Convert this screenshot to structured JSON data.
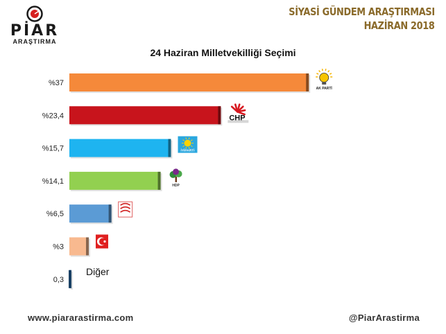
{
  "brand": {
    "name": "PİAR",
    "sub": "ARAŞTIRMA"
  },
  "header": {
    "title": "SİYASİ GÜNDEM ARAŞTIRMASI",
    "date": "HAZİRAN 2018"
  },
  "chart_data": {
    "type": "bar",
    "orientation": "horizontal",
    "title": "24 Haziran Milletvekilliği Seçimi",
    "categories": [
      "AK PARTİ",
      "CHP",
      "İYİ PARTİ",
      "HDP",
      "MHP",
      "Saadet",
      "Diğer"
    ],
    "values": [
      37,
      23.4,
      15.7,
      14.1,
      6.5,
      3,
      0.3
    ],
    "value_labels": [
      "%37",
      "%23,4",
      "%15,7",
      "%14,1",
      "%6,5",
      "%3",
      "0,3"
    ],
    "colors": [
      "#f5893a",
      "#c8141c",
      "#1eb4f0",
      "#92d050",
      "#5b9bd5",
      "#f8b98f",
      "#2e75b6"
    ],
    "icons": [
      "akp-bulb-icon",
      "chp-arrows-icon",
      "iyi-sun-icon",
      "hdp-tree-icon",
      "mhp-crescents-icon",
      "sp-crescent-icon",
      "none"
    ],
    "logo_texts": [
      "AK PARTİ",
      "CHP",
      "İYİPARTİ",
      "HDP",
      "",
      "",
      ""
    ],
    "other_label": "Diğer",
    "grid": false,
    "legend": "none"
  },
  "footer": {
    "website": "www.piararastirma.com",
    "twitter": "@PiarArastirma"
  }
}
